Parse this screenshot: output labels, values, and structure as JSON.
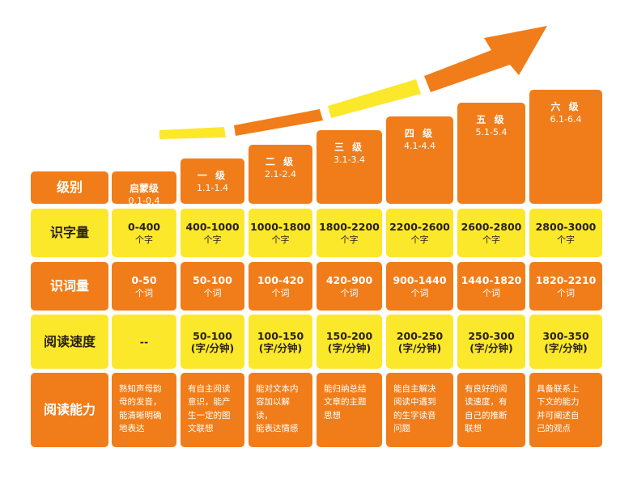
{
  "colors": {
    "orange": "#f07d1a",
    "yellow": "#fbe82a",
    "text_dark": "#2a2018",
    "arrow_orange": "#f07d1a",
    "arrow_yellow": "#fbe82a"
  },
  "row_labels": {
    "level": "级别",
    "chars": "识字量",
    "words": "识词量",
    "speed": "阅读速度",
    "ability": "阅读能力"
  },
  "levels": [
    {
      "name": "启蒙级",
      "range": "0.1-0.4",
      "chars": "0-400",
      "words": "0-50",
      "speed": "--",
      "speed_unit": "",
      "ability": [
        "熟知声母韵",
        "母的发音，",
        "能清晰明确",
        "地表达"
      ]
    },
    {
      "name": "一 级",
      "range": "1.1-1.4",
      "chars": "400-1000",
      "words": "50-100",
      "speed": "50-100",
      "speed_unit": "(字/分钟)",
      "ability": [
        "有自主阅读",
        "意识，能产",
        "生一定的图",
        "文联想"
      ]
    },
    {
      "name": "二 级",
      "range": "2.1-2.4",
      "chars": "1000-1800",
      "words": "100-420",
      "speed": "100-150",
      "speed_unit": "(字/分钟)",
      "ability": [
        "能对文本内",
        "容加以解读，",
        "能表达情感"
      ]
    },
    {
      "name": "三 级",
      "range": "3.1-3.4",
      "chars": "1800-2200",
      "words": "420-900",
      "speed": "150-200",
      "speed_unit": "(字/分钟)",
      "ability": [
        "能归纳总结",
        "文章的主题",
        "思想"
      ]
    },
    {
      "name": "四 级",
      "range": "4.1-4.4",
      "chars": "2200-2600",
      "words": "900-1440",
      "speed": "200-250",
      "speed_unit": "(字/分钟)",
      "ability": [
        "能自主解决",
        "阅读中遇到",
        "的生字读音",
        "问题"
      ]
    },
    {
      "name": "五 级",
      "range": "5.1-5.4",
      "chars": "2600-2800",
      "words": "1440-1820",
      "speed": "250-300",
      "speed_unit": "(字/分钟)",
      "ability": [
        "有良好的阅",
        "读速度，有",
        "自己的推断",
        "联想"
      ]
    },
    {
      "name": "六 级",
      "range": "6.1-6.4",
      "chars": "2800-3000",
      "words": "1820-2210",
      "speed": "300-350",
      "speed_unit": "(字/分钟)",
      "ability": [
        "具备联系上",
        "下文的能力",
        "并可阐述自",
        "己的观点"
      ]
    }
  ],
  "units": {
    "chars": "个字",
    "words": "个词"
  }
}
